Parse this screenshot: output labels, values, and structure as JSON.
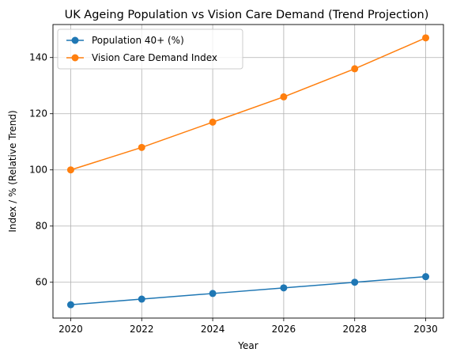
{
  "chart_data": {
    "type": "line",
    "title": "UK Ageing Population vs Vision Care Demand (Trend Projection)",
    "xlabel": "Year",
    "ylabel": "Index / % (Relative Trend)",
    "x": [
      2020,
      2022,
      2024,
      2026,
      2028,
      2030
    ],
    "x_ticks": [
      "2020",
      "2022",
      "2024",
      "2026",
      "2028",
      "2030"
    ],
    "y_ticks": [
      "60",
      "80",
      "100",
      "120",
      "140"
    ],
    "xlim": [
      2019.5,
      2030.5
    ],
    "ylim": [
      47.25,
      151.75
    ],
    "grid": true,
    "legend_position": "top-left",
    "series": [
      {
        "name": "Population 40+ (%)",
        "values": [
          52,
          54,
          56,
          58,
          60,
          62
        ],
        "color": "#1f77b4",
        "marker": "circle"
      },
      {
        "name": "Vision Care Demand Index",
        "values": [
          100,
          108,
          117,
          126,
          136,
          147
        ],
        "color": "#ff7f0e",
        "marker": "circle"
      }
    ]
  }
}
